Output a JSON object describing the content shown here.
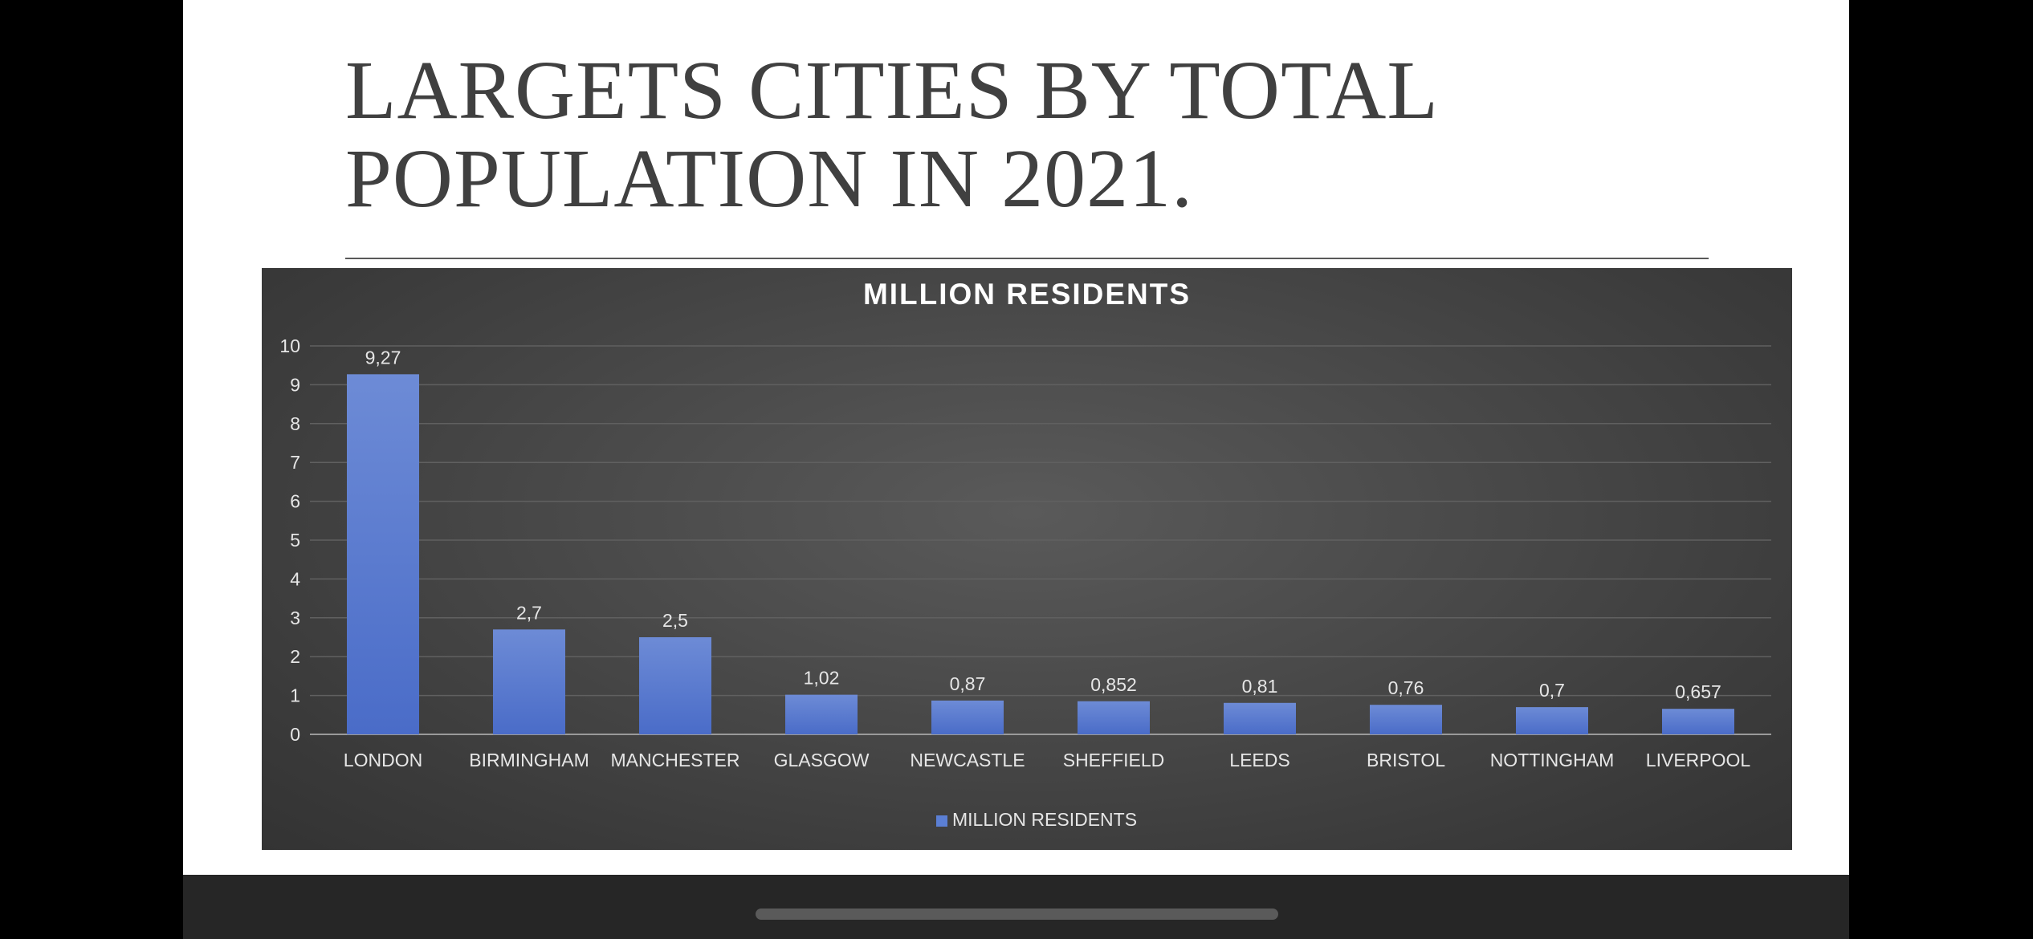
{
  "slide": {
    "title_line1": "LARGETS CITIES BY TOTAL",
    "title_line2": "POPULATION IN 2021."
  },
  "chart_data": {
    "type": "bar",
    "title": "MILLION RESIDENTS",
    "categories": [
      "LONDON",
      "BIRMINGHAM",
      "MANCHESTER",
      "GLASGOW",
      "NEWCASTLE",
      "SHEFFIELD",
      "LEEDS",
      "BRISTOL",
      "NOTTINGHAM",
      "LIVERPOOL"
    ],
    "series": [
      {
        "name": "MILLION RESIDENTS",
        "values": [
          9.27,
          2.7,
          2.5,
          1.02,
          0.87,
          0.852,
          0.81,
          0.76,
          0.7,
          0.657
        ],
        "labels": [
          "9,27",
          "2,7",
          "2,5",
          "1,02",
          "0,87",
          "0,852",
          "0,81",
          "0,76",
          "0,7",
          "0,657"
        ],
        "color": "#5b7fd4"
      }
    ],
    "yticks": [
      0,
      1,
      2,
      3,
      4,
      5,
      6,
      7,
      8,
      9,
      10
    ],
    "ylim": [
      0,
      10
    ],
    "xlabel": "",
    "ylabel": "",
    "grid": true,
    "legend": "bottom-center"
  }
}
